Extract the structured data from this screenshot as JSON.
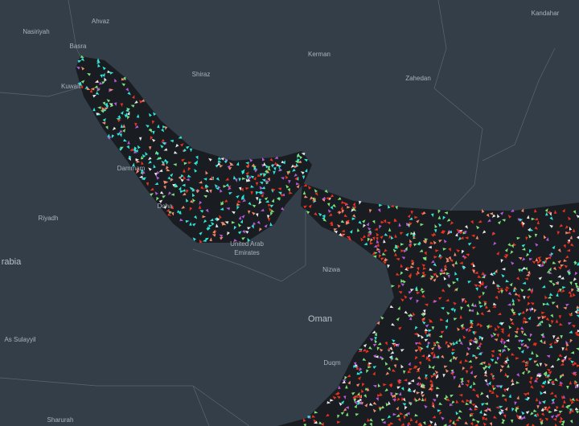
{
  "map": {
    "labels": [
      "Nasiriyah",
      "Ahvaz",
      "Basra",
      "Kuwait",
      "Shiraz",
      "Kerman",
      "Zahedan",
      "Kandahar",
      "Dammam",
      "Doha",
      "Riyadh",
      "rabia",
      "United Arab",
      "Emirates",
      "Nizwa",
      "Oman",
      "Duqm",
      "As Sulayyil",
      "Sharurah"
    ]
  }
}
